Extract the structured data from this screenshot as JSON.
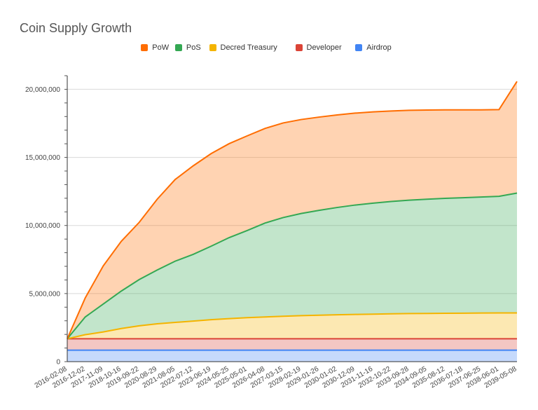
{
  "chart_data": {
    "type": "area",
    "title": "Coin Supply Growth",
    "xlabel": "",
    "ylabel": "",
    "stacked": true,
    "legend_position": "top",
    "grid": true,
    "ylim": [
      0,
      21000000
    ],
    "yticks": [
      0,
      5000000,
      10000000,
      15000000,
      20000000
    ],
    "ytick_labels": [
      "0",
      "5,000,000",
      "10,000,000",
      "15,000,000",
      "20,000,000"
    ],
    "categories": [
      "2016-02-08",
      "2016-12-02",
      "2017-11-09",
      "2018-10-16",
      "2019-09-22",
      "2020-08-29",
      "2021-08-05",
      "2022-07-12",
      "2023-06-19",
      "2024-05-25",
      "2025-05-01",
      "2026-04-08",
      "2027-03-15",
      "2028-02-19",
      "2029-01-26",
      "2030-01-02",
      "2030-12-09",
      "2031-11-16",
      "2032-10-22",
      "2033-09-28",
      "2034-09-05",
      "2035-08-12",
      "2036-07-18",
      "2037-06-25",
      "2038-06-01",
      "2039-05-08"
    ],
    "series": [
      {
        "name": "Airdrop",
        "color": "#4285f4",
        "values": [
          840000,
          840000,
          840000,
          840000,
          840000,
          840000,
          840000,
          840000,
          840000,
          840000,
          840000,
          840000,
          840000,
          840000,
          840000,
          840000,
          840000,
          840000,
          840000,
          840000,
          840000,
          840000,
          840000,
          840000,
          840000,
          840000
        ]
      },
      {
        "name": "Developer",
        "color": "#db4437",
        "values": [
          840000,
          840000,
          840000,
          840000,
          840000,
          840000,
          840000,
          840000,
          840000,
          840000,
          840000,
          840000,
          840000,
          840000,
          840000,
          840000,
          840000,
          840000,
          840000,
          840000,
          840000,
          840000,
          840000,
          840000,
          840000,
          840000
        ]
      },
      {
        "name": "Decred Treasury",
        "color": "#f4b400",
        "values": [
          0,
          300000,
          500000,
          750000,
          950000,
          1100000,
          1200000,
          1300000,
          1400000,
          1480000,
          1550000,
          1600000,
          1650000,
          1700000,
          1730000,
          1760000,
          1790000,
          1810000,
          1830000,
          1850000,
          1860000,
          1870000,
          1880000,
          1890000,
          1900000,
          1900000
        ]
      },
      {
        "name": "PoS",
        "color": "#34a853",
        "values": [
          0,
          1300000,
          2050000,
          2750000,
          3400000,
          3950000,
          4500000,
          4900000,
          5400000,
          5950000,
          6400000,
          6900000,
          7250000,
          7500000,
          7700000,
          7880000,
          8030000,
          8150000,
          8250000,
          8330000,
          8390000,
          8440000,
          8480000,
          8520000,
          8560000,
          8800000
        ]
      },
      {
        "name": "PoW",
        "color": "#ff6d01",
        "values": [
          0,
          1400000,
          2800000,
          3650000,
          4200000,
          5200000,
          6000000,
          6500000,
          6800000,
          6900000,
          6950000,
          6950000,
          6950000,
          6900000,
          6850000,
          6800000,
          6750000,
          6700000,
          6650000,
          6600000,
          6550000,
          6500000,
          6450000,
          6400000,
          6370000,
          8200000
        ]
      }
    ]
  },
  "legend_order": [
    "PoW",
    "PoS",
    "Decred Treasury",
    "Developer",
    "Airdrop"
  ]
}
